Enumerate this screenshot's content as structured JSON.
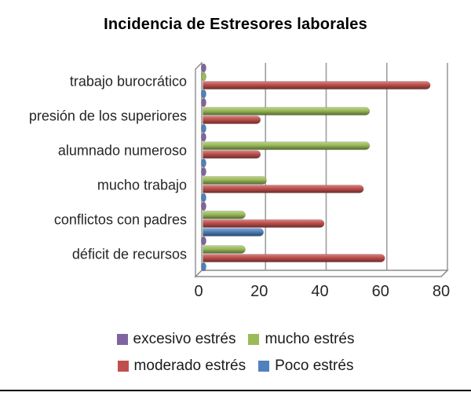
{
  "title": "Incidencia de Estresores laborales",
  "chart_data": {
    "type": "bar",
    "orientation": "horizontal",
    "style": "3d-cylinder",
    "title": "Incidencia de Estresores laborales",
    "xlabel": "",
    "ylabel": "",
    "xlim": [
      0,
      80
    ],
    "x_ticks": [
      0,
      20,
      40,
      60,
      80
    ],
    "grid": true,
    "legend_position": "bottom",
    "categories": [
      "trabajo burocrático",
      "presión de los superiores",
      "alumnado numeroso",
      "mucho trabajo",
      "conflictos con padres",
      "déficit de recursos"
    ],
    "series": [
      {
        "name": "excesivo estrés",
        "color": "#8064A2",
        "values": [
          0,
          0,
          0,
          0,
          0,
          0
        ]
      },
      {
        "name": "mucho estrés",
        "color": "#9BBB59",
        "values": [
          0,
          55,
          55,
          21,
          14,
          14
        ]
      },
      {
        "name": "moderado estrés",
        "color": "#C0504D",
        "values": [
          75,
          19,
          19,
          53,
          40,
          60
        ]
      },
      {
        "name": "Poco estrés",
        "color": "#4F81BD",
        "values": [
          0,
          0,
          0,
          0,
          20,
          0
        ]
      }
    ]
  },
  "colors": {
    "gridline": "#9d9d9d",
    "wall_stroke": "#8c8c8c",
    "wall_fill": "#fcfcfc",
    "tick_text": "#262626",
    "category_text": "#262626"
  }
}
